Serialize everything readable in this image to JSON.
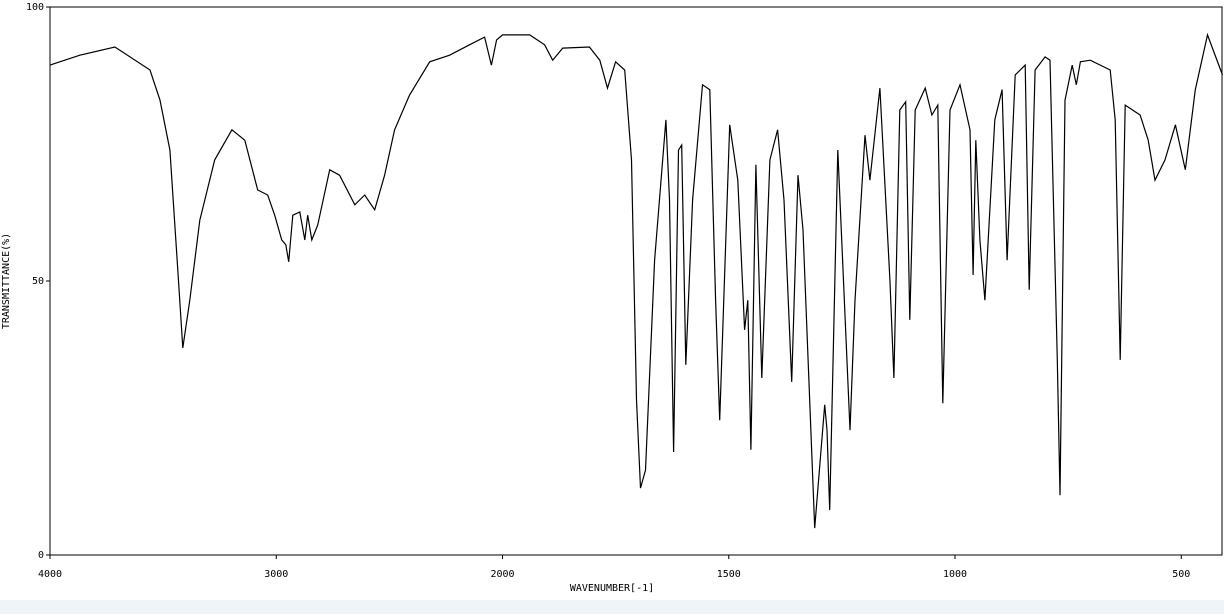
{
  "chart_data": {
    "type": "line",
    "xlabel": "WAVENUMBER[-1]",
    "ylabel": "TRANSMITTANCE(%)",
    "x": [
      4000,
      3868,
      3713,
      3558,
      3514,
      3470,
      3435,
      3413,
      3382,
      3338,
      3272,
      3196,
      3139,
      3082,
      3038,
      3007,
      2976,
      2958,
      2945,
      2927,
      2896,
      2874,
      2861,
      2843,
      2817,
      2764,
      2720,
      2653,
      2609,
      2565,
      2521,
      2477,
      2411,
      2322,
      2234,
      2146,
      2079,
      2049,
      2026,
      2000,
      1940,
      1907,
      1889,
      1867,
      1808,
      1785,
      1768,
      1750,
      1730,
      1715,
      1704,
      1695,
      1684,
      1664,
      1639,
      1631,
      1622,
      1611,
      1604,
      1595,
      1580,
      1558,
      1542,
      1529,
      1520,
      1498,
      1480,
      1465,
      1458,
      1451,
      1440,
      1427,
      1409,
      1392,
      1378,
      1361,
      1347,
      1336,
      1310,
      1288,
      1283,
      1277,
      1259,
      1232,
      1221,
      1199,
      1188,
      1166,
      1144,
      1135,
      1122,
      1109,
      1100,
      1088,
      1066,
      1051,
      1038,
      1027,
      1011,
      989,
      967,
      960,
      954,
      945,
      934,
      912,
      896,
      885,
      867,
      845,
      836,
      823,
      801,
      790,
      774,
      768,
      757,
      741,
      732,
      723,
      701,
      657,
      646,
      635,
      624,
      591,
      573,
      558,
      536,
      513,
      491,
      469,
      442,
      409
    ],
    "values": [
      89.4,
      91.2,
      92.7,
      88.5,
      83.0,
      73.9,
      52.0,
      37.8,
      46.5,
      61.1,
      72.1,
      77.6,
      75.7,
      66.6,
      65.7,
      62.0,
      57.5,
      56.6,
      53.5,
      62.0,
      62.6,
      57.5,
      62.0,
      57.5,
      60.2,
      70.3,
      69.3,
      63.9,
      65.7,
      63.0,
      69.3,
      77.6,
      83.9,
      90.0,
      91.2,
      93.1,
      94.5,
      89.4,
      94.0,
      94.9,
      94.9,
      93.1,
      90.3,
      92.5,
      92.7,
      90.3,
      85.2,
      90.0,
      88.5,
      72.1,
      28.3,
      12.2,
      15.5,
      53.8,
      79.4,
      64.8,
      18.8,
      73.9,
      74.8,
      34.7,
      64.8,
      85.8,
      84.9,
      46.5,
      24.6,
      78.5,
      68.4,
      41.1,
      46.5,
      19.2,
      71.2,
      32.3,
      72.1,
      77.6,
      64.8,
      31.6,
      69.3,
      59.3,
      4.9,
      27.4,
      22.8,
      8.2,
      73.9,
      22.8,
      46.5,
      76.6,
      68.4,
      85.2,
      50.2,
      32.3,
      81.2,
      82.7,
      42.9,
      81.2,
      85.2,
      80.3,
      82.1,
      27.7,
      81.2,
      85.8,
      77.6,
      51.1,
      75.7,
      57.5,
      46.5,
      79.4,
      84.9,
      53.8,
      87.6,
      89.4,
      48.4,
      88.5,
      90.9,
      90.3,
      35.6,
      10.9,
      83.0,
      89.4,
      85.8,
      90.0,
      90.3,
      88.5,
      79.4,
      35.6,
      82.1,
      80.3,
      75.7,
      68.4,
      72.1,
      78.5,
      70.3,
      84.9,
      94.9,
      87.6
    ],
    "color": "#000000",
    "xlim": [
      4000,
      410
    ],
    "x_scale_change_at": 2000,
    "xticks": [
      4000,
      3000,
      2000,
      1500,
      1000,
      500
    ],
    "ylim": [
      0,
      100
    ],
    "yticks": [
      0,
      50,
      100
    ]
  }
}
